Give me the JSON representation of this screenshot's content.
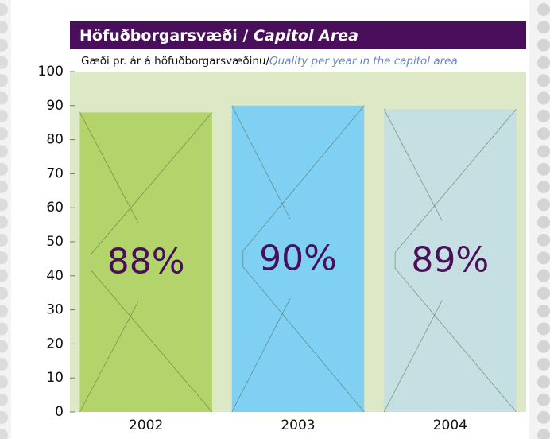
{
  "chart_data": {
    "type": "bar",
    "title": [
      "Höfuðborgarsvæði /",
      "Capitol Area"
    ],
    "subtitle": [
      "Gæði pr. ár á höfuðborgarsvæðinu/",
      "Quality per year in the capitol area"
    ],
    "categories": [
      "2002",
      "2003",
      "2004"
    ],
    "values": [
      88,
      90,
      89
    ],
    "value_labels": [
      "88%",
      "90%",
      "89%"
    ],
    "colors": [
      "#b3d46b",
      "#7fd0f3",
      "#c6dfe2"
    ],
    "ylim": [
      0,
      100
    ],
    "yticks": [
      0,
      10,
      20,
      30,
      40,
      50,
      60,
      70,
      80,
      90,
      100
    ],
    "grid": false
  }
}
